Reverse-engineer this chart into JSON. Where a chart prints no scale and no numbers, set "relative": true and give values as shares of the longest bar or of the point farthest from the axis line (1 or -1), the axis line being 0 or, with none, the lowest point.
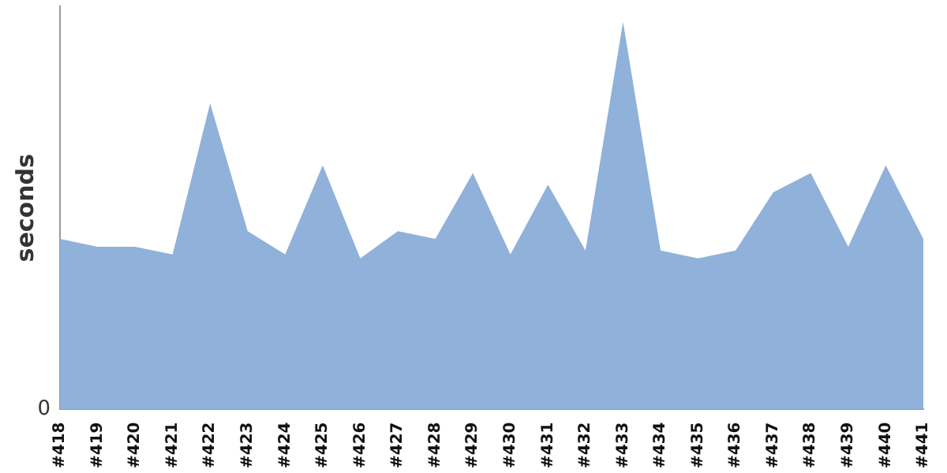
{
  "chart_data": {
    "type": "area",
    "relative": true,
    "ylabel": "seconds",
    "annotations": [
      "0"
    ],
    "categories": [
      "#418",
      "#419",
      "#420",
      "#421",
      "#422",
      "#423",
      "#424",
      "#425",
      "#426",
      "#427",
      "#428",
      "#429",
      "#430",
      "#431",
      "#432",
      "#433",
      "#434",
      "#435",
      "#436",
      "#437",
      "#438",
      "#439",
      "#440",
      "#441"
    ],
    "series": [
      {
        "color": "#8fb1da",
        "values": [
          0.44,
          0.42,
          0.42,
          0.4,
          0.79,
          0.46,
          0.4,
          0.63,
          0.39,
          0.46,
          0.44,
          0.61,
          0.4,
          0.58,
          0.41,
          1,
          0.41,
          0.39,
          0.41,
          0.56,
          0.61,
          0.42,
          0.63,
          0.44
        ]
      }
    ]
  }
}
